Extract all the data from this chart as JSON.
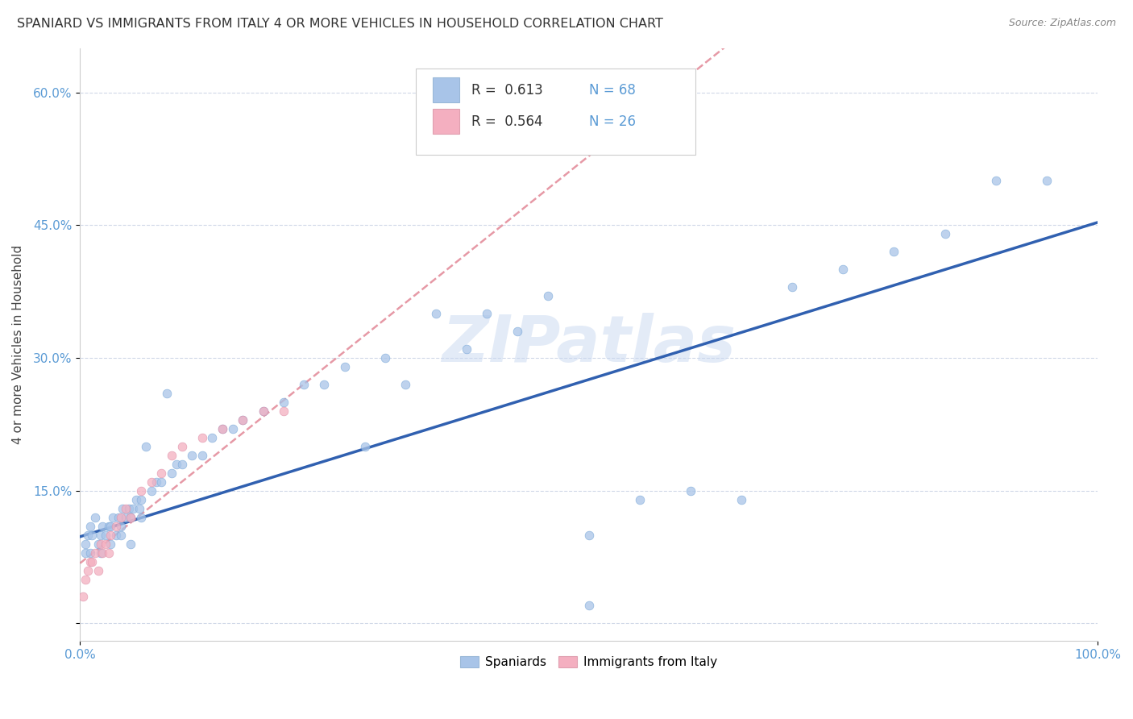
{
  "title": "SPANIARD VS IMMIGRANTS FROM ITALY 4 OR MORE VEHICLES IN HOUSEHOLD CORRELATION CHART",
  "source": "Source: ZipAtlas.com",
  "ylabel": "4 or more Vehicles in Household",
  "ytick_labels": [
    "",
    "15.0%",
    "30.0%",
    "45.0%",
    "60.0%"
  ],
  "ytick_values": [
    0.0,
    0.15,
    0.3,
    0.45,
    0.6
  ],
  "xlim": [
    0.0,
    1.0
  ],
  "ylim": [
    -0.02,
    0.65
  ],
  "legend_R1": "R =  0.613",
  "legend_N1": "N = 68",
  "legend_R2": "R =  0.564",
  "legend_N2": "N = 26",
  "legend_label1": "Spaniards",
  "legend_label2": "Immigrants from Italy",
  "color_blue": "#a8c4e8",
  "color_pink": "#f4afc0",
  "line_blue": "#3060b0",
  "line_pink": "#e08090",
  "background_color": "#ffffff",
  "grid_color": "#d0d8e8",
  "tick_color": "#5b9bd5",
  "watermark_color": "#c8d8f0",
  "span_x": [
    0.005,
    0.008,
    0.01,
    0.012,
    0.015,
    0.018,
    0.02,
    0.022,
    0.025,
    0.028,
    0.03,
    0.032,
    0.035,
    0.038,
    0.04,
    0.042,
    0.045,
    0.048,
    0.05,
    0.052,
    0.055,
    0.058,
    0.06,
    0.065,
    0.07,
    0.075,
    0.08,
    0.085,
    0.09,
    0.095,
    0.1,
    0.11,
    0.12,
    0.13,
    0.14,
    0.15,
    0.16,
    0.18,
    0.2,
    0.22,
    0.24,
    0.26,
    0.28,
    0.3,
    0.32,
    0.35,
    0.38,
    0.4,
    0.43,
    0.46,
    0.5,
    0.55,
    0.6,
    0.65,
    0.7,
    0.75,
    0.8,
    0.85,
    0.9,
    0.95,
    0.005,
    0.01,
    0.02,
    0.03,
    0.04,
    0.05,
    0.06,
    0.5
  ],
  "span_y": [
    0.09,
    0.1,
    0.11,
    0.1,
    0.12,
    0.09,
    0.1,
    0.11,
    0.1,
    0.11,
    0.11,
    0.12,
    0.1,
    0.12,
    0.11,
    0.13,
    0.12,
    0.13,
    0.12,
    0.13,
    0.14,
    0.13,
    0.14,
    0.2,
    0.15,
    0.16,
    0.16,
    0.26,
    0.17,
    0.18,
    0.18,
    0.19,
    0.19,
    0.21,
    0.22,
    0.22,
    0.23,
    0.24,
    0.25,
    0.27,
    0.27,
    0.29,
    0.2,
    0.3,
    0.27,
    0.35,
    0.31,
    0.35,
    0.33,
    0.37,
    0.1,
    0.14,
    0.15,
    0.14,
    0.38,
    0.4,
    0.42,
    0.44,
    0.5,
    0.5,
    0.08,
    0.08,
    0.08,
    0.09,
    0.1,
    0.09,
    0.12,
    0.02
  ],
  "italy_x": [
    0.003,
    0.005,
    0.008,
    0.01,
    0.012,
    0.015,
    0.018,
    0.02,
    0.022,
    0.025,
    0.028,
    0.03,
    0.035,
    0.04,
    0.045,
    0.05,
    0.06,
    0.07,
    0.08,
    0.09,
    0.1,
    0.12,
    0.14,
    0.16,
    0.18,
    0.2
  ],
  "italy_y": [
    0.03,
    0.05,
    0.06,
    0.07,
    0.07,
    0.08,
    0.06,
    0.09,
    0.08,
    0.09,
    0.08,
    0.1,
    0.11,
    0.12,
    0.13,
    0.12,
    0.15,
    0.16,
    0.17,
    0.19,
    0.2,
    0.21,
    0.22,
    0.23,
    0.24,
    0.24
  ],
  "line_blue_intercept": 0.098,
  "line_blue_slope": 0.355,
  "line_pink_intercept": 0.068,
  "line_pink_slope": 0.92
}
